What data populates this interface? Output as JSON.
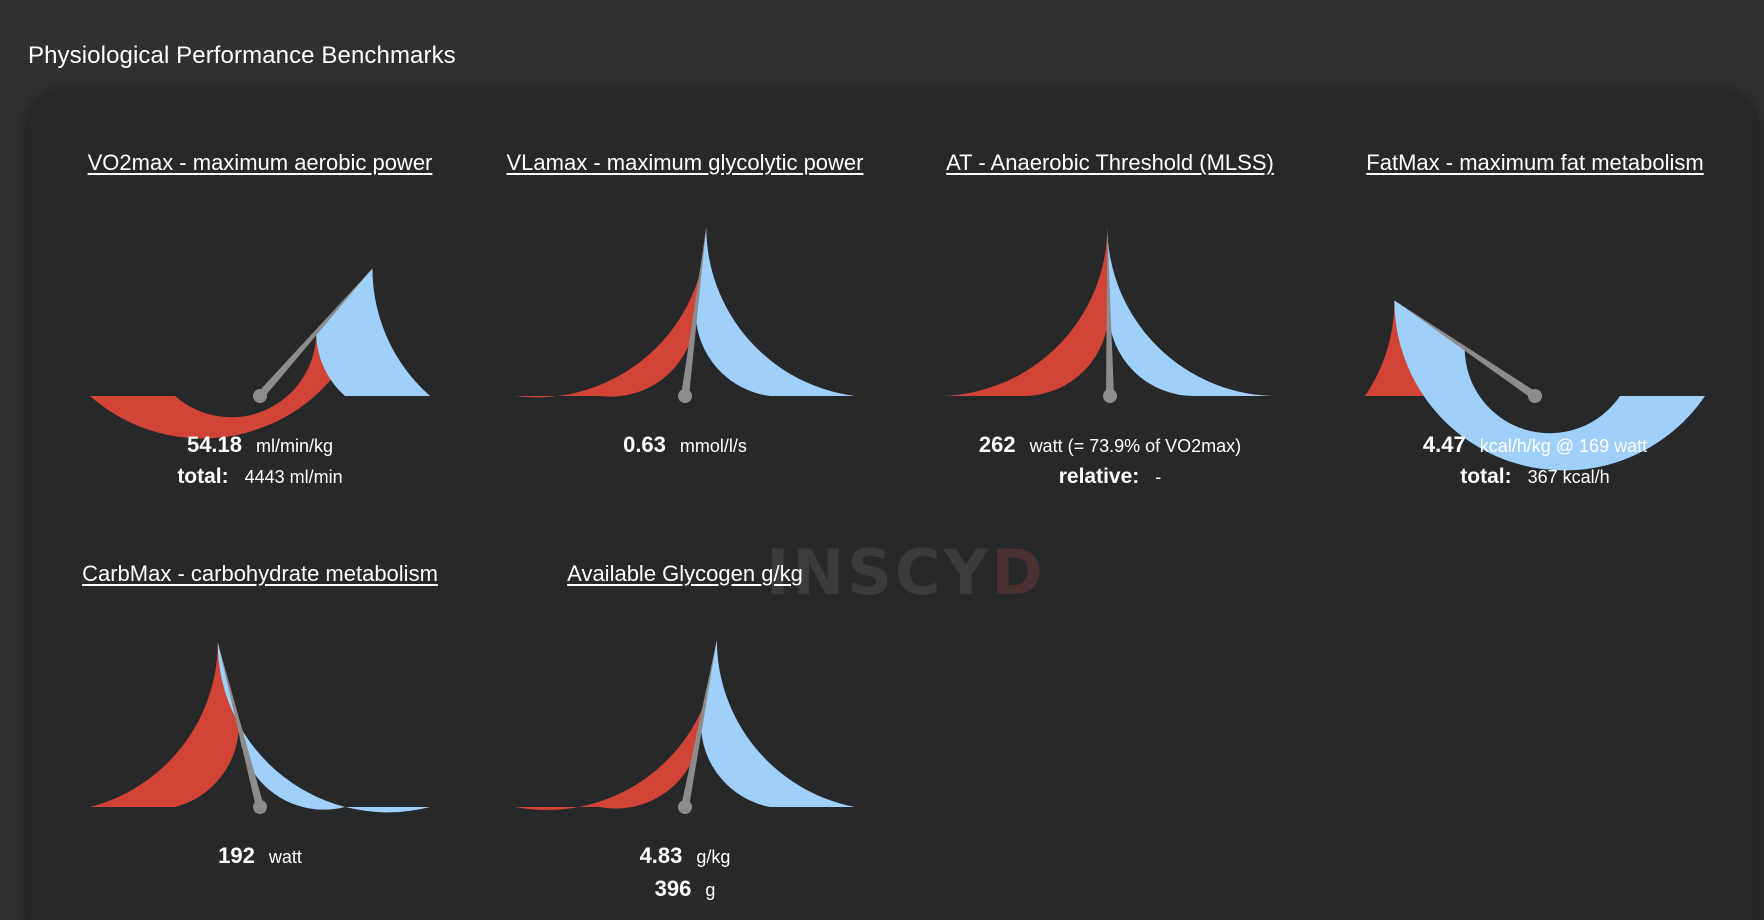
{
  "page": {
    "title": "Physiological Performance Benchmarks",
    "watermark_main": "INSCY",
    "watermark_accent": "D"
  },
  "colors": {
    "background": "#303030",
    "panel": "#272829",
    "low_segment": "#d14334",
    "high_segment": "#9fcffb",
    "needle": "#8c8c8c"
  },
  "gauges": [
    {
      "title": "VO2max - maximum aerobic power",
      "fraction": 0.73,
      "value": "54.18",
      "unit": "ml/min/kg",
      "sub_label": "total:",
      "sub_value": "4443 ml/min"
    },
    {
      "title": "VLamax - maximum glycolytic power",
      "fraction": 0.54,
      "value": "0.63",
      "unit": "mmol/l/s",
      "sub_label": "",
      "sub_value": ""
    },
    {
      "title": "AT - Anaerobic Threshold (MLSS)",
      "fraction": 0.495,
      "value": "262",
      "unit": "watt (= 73.9% of VO2max)",
      "sub_label": "relative:",
      "sub_value": "-"
    },
    {
      "title": "FatMax - maximum fat metabolism",
      "fraction": 0.19,
      "value": "4.47",
      "unit": "kcal/h/kg @ 169 watt",
      "sub_label": "total:",
      "sub_value": "367 kcal/h"
    },
    {
      "title": "CarbMax - carbohydrate metabolism",
      "fraction": 0.42,
      "value": "192",
      "unit": "watt",
      "sub_label": "",
      "sub_value": ""
    },
    {
      "title": "Available Glycogen g/kg",
      "fraction": 0.56,
      "value": "4.83",
      "unit": "g/kg",
      "sub_label": "396",
      "sub_value": "g"
    }
  ]
}
